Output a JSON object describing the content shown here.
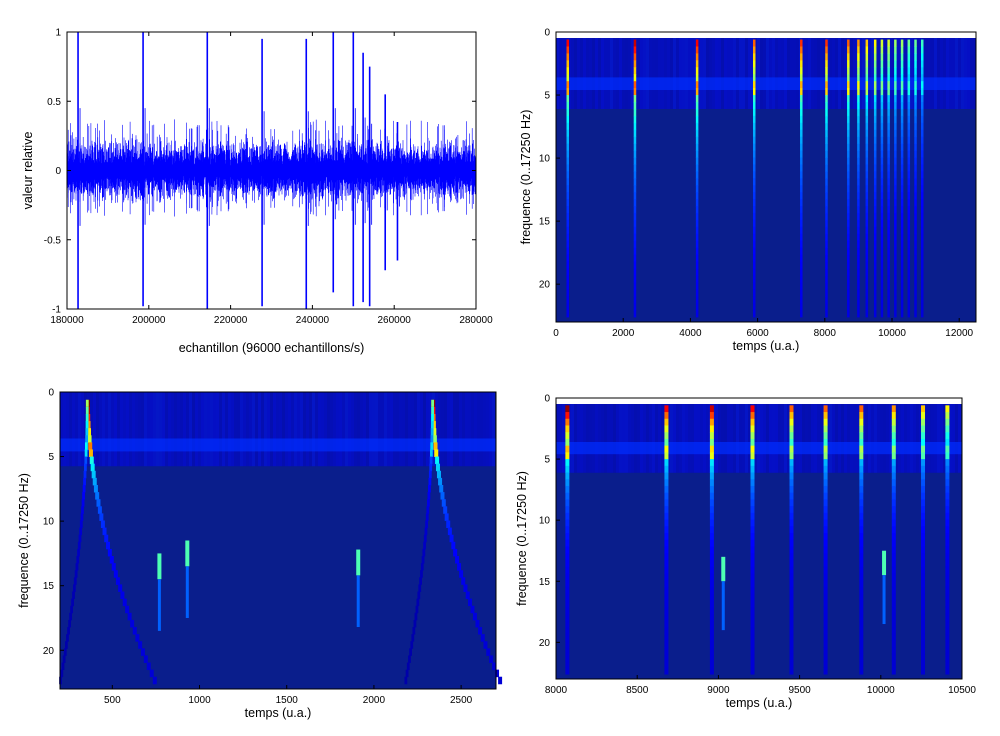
{
  "colors": {
    "signal": "#0000ff",
    "spectro_bg": "#0a1e8c",
    "axis": "#000000"
  },
  "chart_data": [
    {
      "id": "waveform",
      "type": "line",
      "title": "",
      "xlabel": "echantillon (96000 echantillons/s)",
      "ylabel": "valeur relative",
      "xlim": [
        180000,
        280000
      ],
      "ylim": [
        -1,
        1
      ],
      "xticks": [
        "180000",
        "200000",
        "220000",
        "240000",
        "260000",
        "280000"
      ],
      "yticks": [
        "1",
        "0.5",
        "0",
        "-0.5",
        "-1"
      ],
      "noise_amplitude": 0.12,
      "spikes": [
        {
          "x": 182700,
          "up": 1.0,
          "down": -1.0
        },
        {
          "x": 198600,
          "up": 1.0,
          "down": -0.98
        },
        {
          "x": 214300,
          "up": 1.0,
          "down": -1.0
        },
        {
          "x": 227700,
          "up": 0.95,
          "down": -0.98
        },
        {
          "x": 238500,
          "up": 0.95,
          "down": -1.0
        },
        {
          "x": 245100,
          "up": 1.0,
          "down": -0.88
        },
        {
          "x": 250000,
          "up": 1.0,
          "down": -0.98
        },
        {
          "x": 252400,
          "up": 0.85,
          "down": -0.95
        },
        {
          "x": 254000,
          "up": 0.75,
          "down": -0.98
        },
        {
          "x": 257800,
          "up": 0.55,
          "down": -0.72
        },
        {
          "x": 260800,
          "up": 0.35,
          "down": -0.65
        }
      ]
    },
    {
      "id": "spectro-full",
      "type": "heatmap",
      "title": "",
      "xlabel": "temps (u.a.)",
      "ylabel": "frequence (0..17250 Hz)",
      "xlim": [
        0,
        12500
      ],
      "ylim": [
        0,
        23
      ],
      "xticks": [
        "0",
        "2000",
        "4000",
        "6000",
        "8000",
        "10000",
        "12000"
      ],
      "yticks": [
        "0",
        "5",
        "10",
        "15",
        "20"
      ],
      "events": [
        {
          "t": 350,
          "intensity": 0.8
        },
        {
          "t": 2350,
          "intensity": 0.85
        },
        {
          "t": 4200,
          "intensity": 0.8
        },
        {
          "t": 5900,
          "intensity": 0.7
        },
        {
          "t": 7300,
          "intensity": 0.75
        },
        {
          "t": 8050,
          "intensity": 0.75
        },
        {
          "t": 8700,
          "intensity": 0.7
        },
        {
          "t": 9000,
          "intensity": 0.65
        },
        {
          "t": 9250,
          "intensity": 0.6
        },
        {
          "t": 9500,
          "intensity": 0.55
        },
        {
          "t": 9700,
          "intensity": 0.5
        },
        {
          "t": 9900,
          "intensity": 0.5
        },
        {
          "t": 10100,
          "intensity": 0.45
        },
        {
          "t": 10300,
          "intensity": 0.45
        },
        {
          "t": 10500,
          "intensity": 0.4
        },
        {
          "t": 10700,
          "intensity": 0.4
        },
        {
          "t": 10900,
          "intensity": 0.35
        }
      ]
    },
    {
      "id": "spectro-zoom-early",
      "type": "heatmap",
      "title": "",
      "xlabel": "temps (u.a.)",
      "ylabel": "frequence (0..17250 Hz)",
      "xlim": [
        200,
        2700
      ],
      "ylim": [
        0,
        23
      ],
      "xticks": [
        "500",
        "1000",
        "1500",
        "2000",
        "2500"
      ],
      "yticks": [
        "0",
        "5",
        "10",
        "15",
        "20"
      ],
      "events": [
        {
          "t": 360,
          "intensity": 1.0,
          "curved": true
        },
        {
          "t": 2340,
          "intensity": 0.9,
          "curved": true
        }
      ],
      "blips": [
        {
          "t": 770,
          "f": 13.5
        },
        {
          "t": 930,
          "f": 12.5
        },
        {
          "t": 1910,
          "f": 13.2
        }
      ]
    },
    {
      "id": "spectro-zoom-late",
      "type": "heatmap",
      "title": "",
      "xlabel": "temps (u.a.)",
      "ylabel": "frequence (0..17250 Hz)",
      "xlim": [
        8000,
        10500
      ],
      "ylim": [
        0,
        23
      ],
      "xticks": [
        "8000",
        "8500",
        "9000",
        "9500",
        "10000",
        "10500"
      ],
      "yticks": [
        "0",
        "5",
        "10",
        "15",
        "20"
      ],
      "events": [
        {
          "t": 8070,
          "intensity": 0.9
        },
        {
          "t": 8680,
          "intensity": 0.8
        },
        {
          "t": 8960,
          "intensity": 0.85
        },
        {
          "t": 9210,
          "intensity": 0.8
        },
        {
          "t": 9450,
          "intensity": 0.7
        },
        {
          "t": 9660,
          "intensity": 0.7
        },
        {
          "t": 9880,
          "intensity": 0.7
        },
        {
          "t": 10080,
          "intensity": 0.65
        },
        {
          "t": 10260,
          "intensity": 0.6
        },
        {
          "t": 10410,
          "intensity": 0.55
        }
      ],
      "blips": [
        {
          "t": 9030,
          "f": 14.0
        },
        {
          "t": 10020,
          "f": 13.5
        }
      ]
    }
  ]
}
